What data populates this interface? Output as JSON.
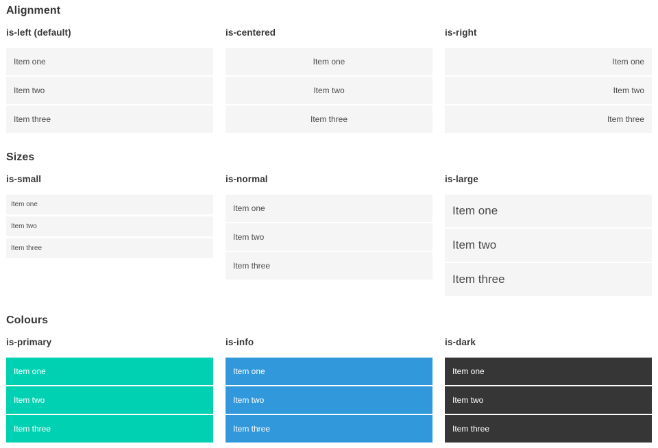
{
  "colors": {
    "primary": "#00d1b2",
    "info": "#3298dc",
    "dark": "#363636",
    "item_default_bg": "#f5f5f5",
    "item_default_text": "#4a4a4a",
    "heading_text": "#363636",
    "colored_item_text": "#ffffff"
  },
  "sections": [
    {
      "title": "Alignment",
      "groups": [
        {
          "label": "is-left (default)",
          "modifier": "align-left",
          "items": [
            "Item one",
            "Item two",
            "Item three"
          ]
        },
        {
          "label": "is-centered",
          "modifier": "align-center",
          "items": [
            "Item one",
            "Item two",
            "Item three"
          ]
        },
        {
          "label": "is-right",
          "modifier": "align-right",
          "items": [
            "Item one",
            "Item two",
            "Item three"
          ]
        }
      ]
    },
    {
      "title": "Sizes",
      "groups": [
        {
          "label": "is-small",
          "modifier": "size-small",
          "items": [
            "Item one",
            "Item two",
            "Item three"
          ]
        },
        {
          "label": "is-normal",
          "modifier": "size-normal",
          "items": [
            "Item one",
            "Item two",
            "Item three"
          ]
        },
        {
          "label": "is-large",
          "modifier": "size-large",
          "items": [
            "Item one",
            "Item two",
            "Item three"
          ]
        }
      ]
    },
    {
      "title": "Colours",
      "groups": [
        {
          "label": "is-primary",
          "modifier": "color-primary",
          "items": [
            "Item one",
            "Item two",
            "Item three"
          ]
        },
        {
          "label": "is-info",
          "modifier": "color-info",
          "items": [
            "Item one",
            "Item two",
            "Item three"
          ]
        },
        {
          "label": "is-dark",
          "modifier": "color-dark",
          "items": [
            "Item one",
            "Item two",
            "Item three"
          ]
        }
      ]
    }
  ]
}
